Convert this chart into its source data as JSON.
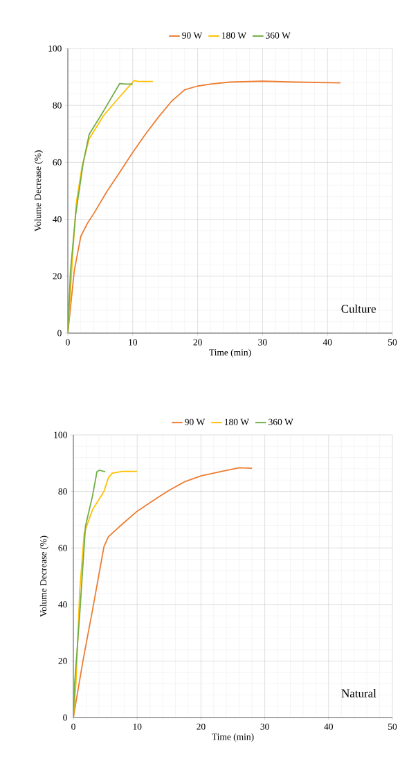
{
  "chart_data": [
    {
      "type": "line",
      "xlabel": "Time (min)",
      "ylabel": "Volume Decrease (%)",
      "annotations": [
        "Culture"
      ],
      "xlim": [
        0,
        50
      ],
      "ylim": [
        0,
        100
      ],
      "xticks": [
        0,
        10,
        20,
        30,
        40,
        50
      ],
      "yticks": [
        0,
        20,
        40,
        60,
        80,
        100
      ],
      "grid": true,
      "legend": "top",
      "line_style": "solid",
      "series": [
        {
          "name": "90 W",
          "color": "#ed7d31",
          "x": [
            0,
            1,
            2,
            3,
            4,
            6,
            8,
            10,
            12,
            14,
            16,
            18,
            20,
            22,
            25,
            30,
            35,
            42
          ],
          "values": [
            0,
            22,
            34,
            38.5,
            42,
            49.7,
            56.5,
            63.5,
            70,
            76,
            81.5,
            85.5,
            86.8,
            87.5,
            88.2,
            88.5,
            88.2,
            87.9
          ]
        },
        {
          "name": "180 W",
          "color": "#ffc000",
          "x": [
            0,
            0.8,
            1.3,
            2.2,
            3.3,
            5.5,
            7.6,
            9.5,
            10.2,
            10.9,
            13.1
          ],
          "values": [
            0,
            29.5,
            45.7,
            58.6,
            68.3,
            76.4,
            82,
            86.9,
            88.7,
            88.4,
            88.4
          ]
        },
        {
          "name": "360 W",
          "color": "#70ad47",
          "x": [
            0,
            0.4,
            1.2,
            2.4,
            3.3,
            5.5,
            8,
            8.9,
            10
          ],
          "values": [
            0,
            21.4,
            41.6,
            60.2,
            69.9,
            78,
            87.7,
            87.5,
            87.5
          ]
        }
      ]
    },
    {
      "type": "line",
      "xlabel": "Time (min)",
      "ylabel": "Volume Decrease (%)",
      "annotations": [
        "Natural"
      ],
      "xlim": [
        0,
        50
      ],
      "ylim": [
        0,
        100
      ],
      "xticks": [
        0,
        10,
        20,
        30,
        40,
        50
      ],
      "yticks": [
        0,
        20,
        40,
        60,
        80,
        100
      ],
      "grid": true,
      "legend": "top",
      "line_style": "solid",
      "series": [
        {
          "name": "90 W",
          "color": "#ed7d31",
          "x": [
            0,
            1.5,
            3,
            4.2,
            4.8,
            5.5,
            7.7,
            10,
            13,
            15,
            17.5,
            20,
            23,
            26,
            28
          ],
          "values": [
            0,
            20,
            38,
            53,
            60.5,
            64,
            68.5,
            73,
            77.5,
            80.4,
            83.5,
            85.5,
            87,
            88.4,
            88.2
          ]
        },
        {
          "name": "180 W",
          "color": "#ffc000",
          "x": [
            0,
            0.4,
            1,
            1.7,
            3,
            4.8,
            5.5,
            6.1,
            7.7,
            10
          ],
          "values": [
            0,
            12,
            44.8,
            65.3,
            73.5,
            80,
            84.9,
            86.5,
            87.1,
            87.1
          ]
        },
        {
          "name": "360 W",
          "color": "#70ad47",
          "x": [
            0,
            0.2,
            1,
            1.9,
            3,
            3.7,
            4.1,
            5
          ],
          "values": [
            0,
            12,
            36.6,
            67.7,
            78.4,
            87,
            87.5,
            87
          ]
        }
      ]
    }
  ]
}
